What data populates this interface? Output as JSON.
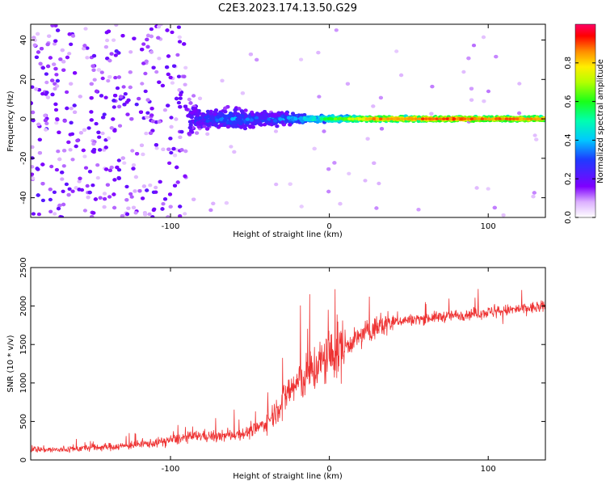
{
  "title": "C2E3.2023.174.13.50.G29",
  "chart_data": [
    {
      "type": "heatmap",
      "xlabel": "Height of straight line (km)",
      "ylabel": "Frequency (Hz)",
      "xlim": [
        -188,
        136
      ],
      "ylim": [
        -50,
        48
      ],
      "x_ticks": [
        -100,
        0,
        100
      ],
      "x_tick_labels": [
        "-100",
        "0",
        "100"
      ],
      "y_ticks": [
        -40,
        -20,
        0,
        20,
        40
      ],
      "y_tick_labels": [
        "-40",
        "-20",
        "0",
        "20",
        "40"
      ],
      "grid": false,
      "description_points": [
        {
          "x": -160,
          "spread_hz": 48,
          "amplitude": 0.15
        },
        {
          "x": -110,
          "spread_hz": 48,
          "amplitude": 0.12
        },
        {
          "x": -80,
          "spread_hz": 8,
          "amplitude": 0.3
        },
        {
          "x": -60,
          "spread_hz": 9,
          "amplitude": 0.35
        },
        {
          "x": -40,
          "spread_hz": 6,
          "amplitude": 0.3
        },
        {
          "x": -10,
          "spread_hz": 3,
          "amplitude": 0.5
        },
        {
          "x": 30,
          "spread_hz": 2,
          "amplitude": 0.85
        },
        {
          "x": 80,
          "spread_hz": 2,
          "amplitude": 0.9
        },
        {
          "x": 130,
          "spread_hz": 2,
          "amplitude": 0.85
        }
      ],
      "colorbar": {
        "label": "Normalized spectral amplitude",
        "range": [
          0,
          1
        ],
        "ticks": [
          0.0,
          0.2,
          0.4,
          0.6,
          0.8
        ],
        "tick_labels": [
          "0.0",
          "0.2",
          "0.4",
          "0.6",
          "0.8"
        ],
        "colormap": "rainbow"
      }
    },
    {
      "type": "line",
      "xlabel": "Height of straight line (km)",
      "ylabel": "SNR (10 * v/v)",
      "xlim": [
        -188,
        136
      ],
      "ylim": [
        0,
        2500
      ],
      "x_ticks": [
        -100,
        0,
        100
      ],
      "x_tick_labels": [
        "-100",
        "0",
        "100"
      ],
      "y_ticks": [
        0,
        500,
        1000,
        1500,
        2000,
        2500
      ],
      "y_tick_labels": [
        "0",
        "500",
        "1000",
        "1500",
        "2000",
        "2500"
      ],
      "grid": false,
      "series": [
        {
          "color": "#ee3333",
          "x": [
            -188,
            -170,
            -150,
            -130,
            -110,
            -100,
            -90,
            -80,
            -70,
            -60,
            -50,
            -45,
            -40,
            -35,
            -30,
            -25,
            -20,
            -15,
            -10,
            -5,
            0,
            5,
            10,
            15,
            20,
            25,
            30,
            35,
            40,
            50,
            60,
            70,
            80,
            90,
            100,
            110,
            120,
            136
          ],
          "y": [
            140,
            130,
            160,
            180,
            220,
            260,
            290,
            320,
            300,
            330,
            360,
            420,
            480,
            600,
            760,
            900,
            1000,
            1080,
            1180,
            1260,
            1350,
            1420,
            1480,
            1540,
            1620,
            1680,
            1720,
            1760,
            1800,
            1820,
            1840,
            1860,
            1880,
            1900,
            1920,
            1940,
            1960,
            1990
          ]
        }
      ]
    }
  ]
}
